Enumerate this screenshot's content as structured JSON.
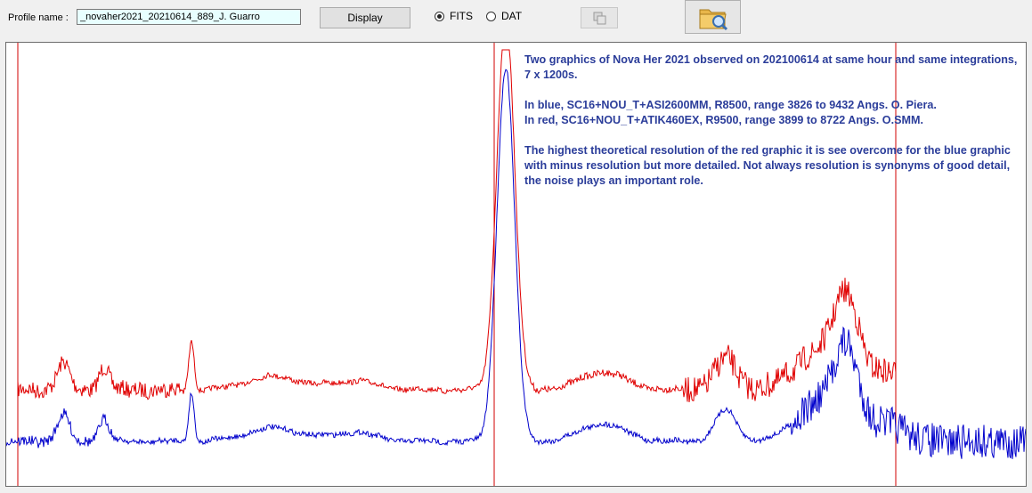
{
  "profile": {
    "label": "Profile name :",
    "value": "_novaher2021_20210614_889_J. Guarro"
  },
  "buttons": {
    "display_label": "Display"
  },
  "format_options": [
    {
      "label": "FITS",
      "selected": true
    },
    {
      "label": "DAT",
      "selected": false
    }
  ],
  "icons": {
    "copy": "copy-icon",
    "open_folder": "folder-search-icon"
  },
  "annotation": {
    "line1": "Two graphics of Nova Her 2021 observed on 202100614 at same hour and same integrations, 7 x 1200s.",
    "line2": "In blue, SC16+NOU_T+ASI2600MM, R8500, range 3826 to 9432 Angs.  O. Piera.",
    "line3": "In red, SC16+NOU_T+ATIK460EX, R9500, range 3899 to 8722 Angs.      O.SMM.",
    "line4": "The highest theoretical resolution of the red graphic it is see overcome for the blue graphic with minus resolution but more detailed. Not always resolution is synonyms of good detail,  the noise  plays an important role."
  },
  "colors": {
    "blue_series": "#0000cc",
    "red_series": "#e00000",
    "annotation_text": "#2b3d9a"
  }
}
